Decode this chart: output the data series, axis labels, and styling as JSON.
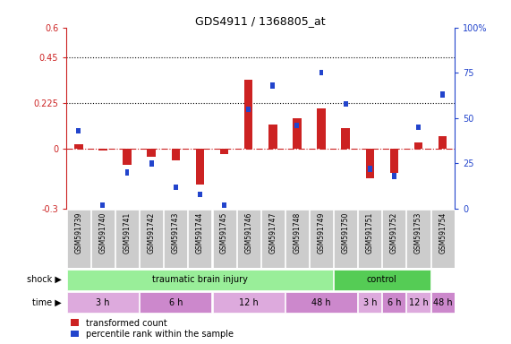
{
  "title": "GDS4911 / 1368805_at",
  "samples": [
    "GSM591739",
    "GSM591740",
    "GSM591741",
    "GSM591742",
    "GSM591743",
    "GSM591744",
    "GSM591745",
    "GSM591746",
    "GSM591747",
    "GSM591748",
    "GSM591749",
    "GSM591750",
    "GSM591751",
    "GSM591752",
    "GSM591753",
    "GSM591754"
  ],
  "transformed_count": [
    0.02,
    -0.01,
    -0.08,
    -0.04,
    -0.06,
    -0.18,
    -0.03,
    0.34,
    0.12,
    0.15,
    0.2,
    0.1,
    -0.15,
    -0.12,
    0.03,
    0.06
  ],
  "percentile_rank": [
    0.43,
    0.02,
    0.2,
    0.25,
    0.12,
    0.08,
    0.02,
    0.55,
    0.68,
    0.46,
    0.75,
    0.58,
    0.22,
    0.18,
    0.45,
    0.63
  ],
  "ylim_left": [
    -0.3,
    0.6
  ],
  "ylim_right": [
    0.0,
    1.0
  ],
  "yticks_left": [
    -0.3,
    0.0,
    0.225,
    0.45,
    0.6
  ],
  "yticks_right": [
    0.0,
    0.25,
    0.5,
    0.75,
    1.0
  ],
  "ytick_labels_left": [
    "-0.3",
    "0",
    "0.225",
    "0.45",
    "0.6"
  ],
  "ytick_labels_right": [
    "0",
    "25",
    "50",
    "75",
    "100%"
  ],
  "hlines": [
    0.225,
    0.45
  ],
  "shock_groups": [
    {
      "label": "traumatic brain injury",
      "start": 0,
      "end": 11,
      "color": "#99EE99"
    },
    {
      "label": "control",
      "start": 11,
      "end": 15,
      "color": "#55CC55"
    }
  ],
  "time_groups": [
    {
      "label": "3 h",
      "start": 0,
      "end": 3,
      "color": "#DDAADD"
    },
    {
      "label": "6 h",
      "start": 3,
      "end": 6,
      "color": "#CC88CC"
    },
    {
      "label": "12 h",
      "start": 6,
      "end": 9,
      "color": "#DDAADD"
    },
    {
      "label": "48 h",
      "start": 9,
      "end": 12,
      "color": "#CC88CC"
    },
    {
      "label": "3 h",
      "start": 12,
      "end": 13,
      "color": "#DDAADD"
    },
    {
      "label": "6 h",
      "start": 13,
      "end": 14,
      "color": "#CC88CC"
    },
    {
      "label": "12 h",
      "start": 14,
      "end": 15,
      "color": "#DDAADD"
    },
    {
      "label": "48 h",
      "start": 15,
      "end": 16,
      "color": "#CC88CC"
    }
  ],
  "bar_color_red": "#CC2222",
  "bar_color_blue": "#2244CC",
  "zero_line_color": "#CC2222",
  "background_color": "#FFFFFF",
  "sample_box_color": "#CCCCCC"
}
